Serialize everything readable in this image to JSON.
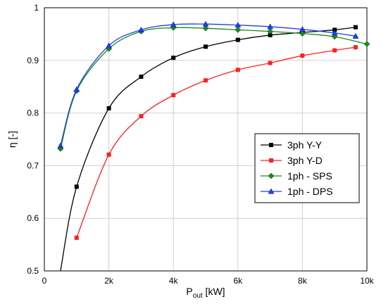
{
  "chart_data": {
    "type": "line",
    "xlabel_main": "P",
    "xlabel_sub": "out",
    "xlabel_unit": " [kW]",
    "ylabel": "η [-]",
    "xlim": [
      0,
      10000
    ],
    "ylim": [
      0.5,
      1.0
    ],
    "x_ticks": [
      0,
      2000,
      4000,
      6000,
      8000,
      10000
    ],
    "x_tick_labels": [
      "0",
      "2k",
      "4k",
      "6k",
      "8k",
      "10k"
    ],
    "y_ticks": [
      0.5,
      0.6,
      0.7,
      0.8,
      0.9,
      1.0
    ],
    "y_tick_labels": [
      "0.5",
      "0.6",
      "0.7",
      "0.8",
      "0.9",
      "1"
    ],
    "grid": true,
    "legend_position": "center-right",
    "series": [
      {
        "name": "3ph Y-Y",
        "color": "#000000",
        "marker": "square",
        "x": [
          500,
          1000,
          2000,
          3000,
          4000,
          5000,
          6000,
          7000,
          8000,
          9000,
          9650
        ],
        "y": [
          0.5,
          0.66,
          0.809,
          0.869,
          0.905,
          0.926,
          0.939,
          0.948,
          0.953,
          0.958,
          0.963
        ]
      },
      {
        "name": "3ph Y-D",
        "color": "#ff2020",
        "marker": "square",
        "x": [
          1000,
          2000,
          3000,
          4000,
          5000,
          6000,
          7000,
          8000,
          9000,
          9650
        ],
        "y": [
          0.563,
          0.721,
          0.794,
          0.834,
          0.862,
          0.882,
          0.895,
          0.909,
          0.919,
          0.925
        ]
      },
      {
        "name": "1ph - SPS",
        "color": "#1a8a1a",
        "marker": "diamond",
        "x": [
          500,
          1000,
          2000,
          3000,
          4000,
          5000,
          6000,
          7000,
          8000,
          9000,
          10000
        ],
        "y": [
          0.732,
          0.842,
          0.922,
          0.955,
          0.962,
          0.961,
          0.958,
          0.955,
          0.951,
          0.945,
          0.931
        ]
      },
      {
        "name": "1ph - DPS",
        "color": "#1f3ef0",
        "marker": "triangle",
        "x": [
          500,
          1000,
          2000,
          3000,
          4000,
          5000,
          6000,
          7000,
          8000,
          9000,
          9650
        ],
        "y": [
          0.738,
          0.845,
          0.928,
          0.958,
          0.968,
          0.969,
          0.967,
          0.964,
          0.959,
          0.952,
          0.946
        ]
      }
    ]
  }
}
